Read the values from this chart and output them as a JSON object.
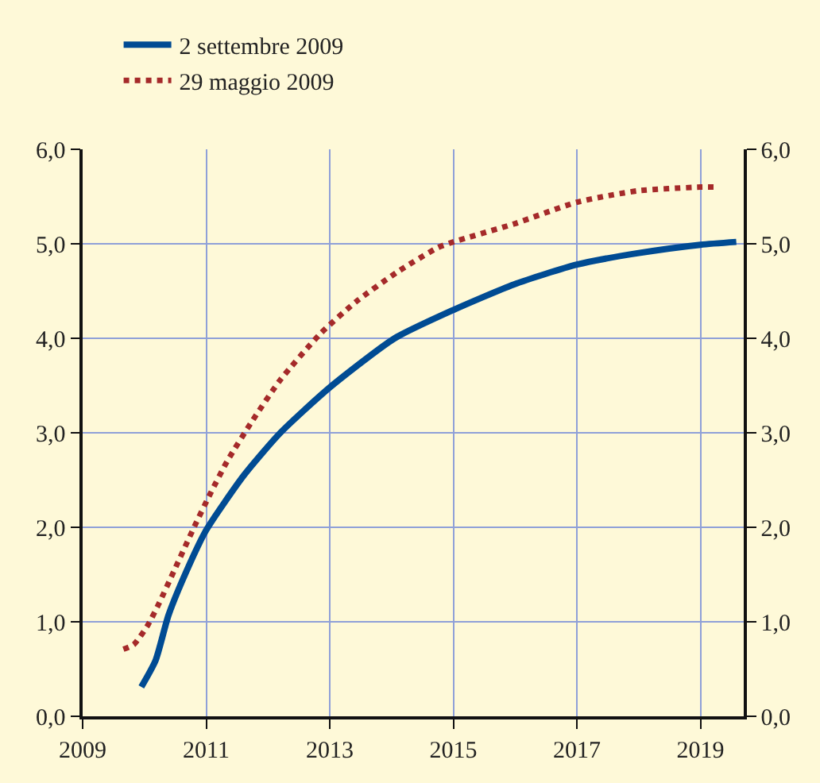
{
  "chart_data": {
    "type": "line",
    "xlim": [
      2009,
      2019.7
    ],
    "xticks": [
      2009,
      2011,
      2013,
      2015,
      2017,
      2019
    ],
    "ylim": [
      0,
      6
    ],
    "yticks": [
      {
        "value": 0,
        "label": "0,0"
      },
      {
        "value": 1,
        "label": "1,0"
      },
      {
        "value": 2,
        "label": "2,0"
      },
      {
        "value": 3,
        "label": "3,0"
      },
      {
        "value": 4,
        "label": "4,0"
      },
      {
        "value": 5,
        "label": "5,0"
      },
      {
        "value": 6,
        "label": "6,0"
      }
    ],
    "y2lim": [
      0,
      6
    ],
    "y2ticks": [
      {
        "value": 0,
        "label": "0,0"
      },
      {
        "value": 1,
        "label": "1,0"
      },
      {
        "value": 2,
        "label": "2,0"
      },
      {
        "value": 3,
        "label": "3,0"
      },
      {
        "value": 4,
        "label": "4,0"
      },
      {
        "value": 5,
        "label": "5,0"
      },
      {
        "value": 6,
        "label": "6,0"
      }
    ],
    "grid": true,
    "legend": "top left",
    "series": [
      {
        "name": "2 settembre 2009",
        "color": "#004b93",
        "line_style": "solid",
        "x": [
          2009.95,
          2010.18,
          2010.39,
          2010.69,
          2011,
          2011.61,
          2012.2,
          2013,
          2014.05,
          2015,
          2015.98,
          2017,
          2017.98,
          2019,
          2019.58
        ],
        "values": [
          0.31,
          0.59,
          1.07,
          1.55,
          1.97,
          2.55,
          3.0,
          3.48,
          4.0,
          4.3,
          4.57,
          4.78,
          4.9,
          4.99,
          5.02
        ]
      },
      {
        "name": "29 maggio 2009",
        "color": "#a52a2a",
        "line_style": "dotted",
        "x": [
          2009.66,
          2009.83,
          2010.06,
          2010.24,
          2010.48,
          2010.81,
          2011.07,
          2011.34,
          2011.75,
          2012.2,
          2012.85,
          2013.43,
          2014.09,
          2014.75,
          2015,
          2015.98,
          2017,
          2017.98,
          2019,
          2019.25
        ],
        "values": [
          0.71,
          0.76,
          0.97,
          1.2,
          1.54,
          2.01,
          2.36,
          2.7,
          3.13,
          3.56,
          4.05,
          4.39,
          4.7,
          4.96,
          5.02,
          5.21,
          5.44,
          5.56,
          5.6,
          5.6
        ]
      }
    ]
  }
}
